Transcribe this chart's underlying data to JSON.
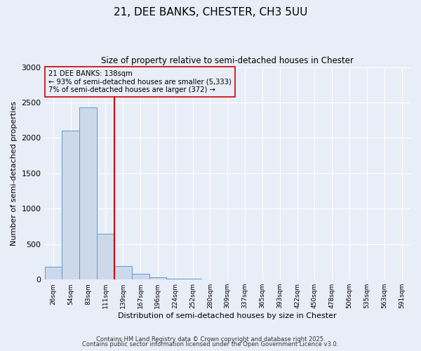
{
  "title": "21, DEE BANKS, CHESTER, CH3 5UU",
  "subtitle": "Size of property relative to semi-detached houses in Chester",
  "xlabel": "Distribution of semi-detached houses by size in Chester",
  "ylabel": "Number of semi-detached properties",
  "bin_labels": [
    "26sqm",
    "54sqm",
    "83sqm",
    "111sqm",
    "139sqm",
    "167sqm",
    "196sqm",
    "224sqm",
    "252sqm",
    "280sqm",
    "309sqm",
    "337sqm",
    "365sqm",
    "393sqm",
    "422sqm",
    "450sqm",
    "478sqm",
    "506sqm",
    "535sqm",
    "563sqm",
    "591sqm"
  ],
  "bar_values": [
    180,
    2100,
    2430,
    650,
    195,
    80,
    30,
    10,
    10,
    0,
    0,
    0,
    0,
    0,
    0,
    0,
    0,
    0,
    0,
    0,
    0
  ],
  "bar_color": "#ccd9ea",
  "bar_edgecolor": "#5b9bd5",
  "vline_x": 3.5,
  "vline_color": "#cc0000",
  "annotation_text": "21 DEE BANKS: 138sqm\n← 93% of semi-detached houses are smaller (5,333)\n7% of semi-detached houses are larger (372) →",
  "annotation_box_edgecolor": "#cc0000",
  "annotation_box_facecolor": "#e8eef7",
  "ylim": [
    0,
    3000
  ],
  "yticks": [
    0,
    500,
    1000,
    1500,
    2000,
    2500,
    3000
  ],
  "bg_color": "#e8eef7",
  "grid_color": "#ffffff",
  "footer1": "Contains HM Land Registry data © Crown copyright and database right 2025.",
  "footer2": "Contains public sector information licensed under the Open Government Licence v3.0."
}
